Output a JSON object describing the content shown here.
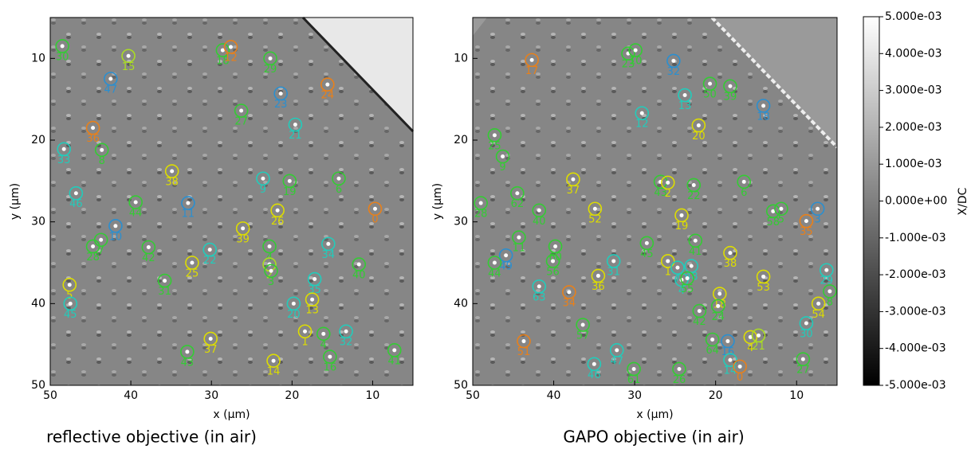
{
  "chart_data": [
    {
      "type": "scatter",
      "title": "reflective objective (in air)",
      "xlabel": "x (µm)",
      "ylabel": "y (µm)",
      "xlim": [
        50,
        5
      ],
      "ylim": [
        50,
        5
      ],
      "xticks": [
        50,
        40,
        30,
        20,
        10
      ],
      "yticks": [
        10,
        20,
        30,
        40,
        50
      ],
      "x": [
        48.5,
        40.3,
        28.6,
        27.6,
        22.7,
        42.5,
        21.4,
        15.6,
        26.3,
        19.6,
        44.7,
        48.3,
        43.6,
        34.9,
        23.6,
        20.3,
        14.2,
        46.8,
        39.4,
        32.9,
        21.8,
        9.7,
        41.9,
        26.1,
        43.7,
        44.7,
        37.8,
        30.2,
        15.5,
        22.8,
        32.4,
        11.7,
        22.8,
        22.6,
        47.6,
        35.8,
        17.2,
        47.5,
        19.8,
        17.5,
        18.4,
        16.1,
        13.3,
        33.0,
        30.1,
        15.3,
        22.3,
        7.3
      ],
      "y": [
        8.5,
        9.7,
        9.0,
        8.6,
        10.0,
        12.5,
        14.3,
        13.2,
        16.4,
        18.1,
        18.5,
        21.1,
        21.2,
        23.8,
        24.7,
        25.0,
        24.7,
        26.5,
        27.6,
        27.7,
        28.6,
        28.4,
        30.5,
        30.8,
        32.2,
        33.0,
        33.1,
        33.4,
        32.7,
        33.0,
        35.0,
        35.2,
        35.2,
        36.0,
        37.7,
        37.2,
        37.0,
        40.0,
        40.0,
        39.5,
        43.4,
        43.7,
        43.4,
        45.9,
        44.3,
        46.5,
        47.0,
        45.7
      ],
      "point_labels": [
        "30",
        "15",
        "18",
        "12",
        "29",
        "47",
        "23",
        "24",
        "27",
        "21",
        "36",
        "33",
        "8",
        "38",
        "9",
        "19",
        "6",
        "46",
        "44",
        "11",
        "26",
        "0",
        "10",
        "39",
        "7",
        "28",
        "42",
        "22",
        "34",
        "4",
        "25",
        "40",
        "2",
        "3",
        "5",
        "31",
        "35",
        "45",
        "20",
        "13",
        "1",
        "4",
        "32",
        "43",
        "37",
        "16",
        "14",
        "41"
      ],
      "point_colors": [
        "#33cc33",
        "#aadd22",
        "#33cc33",
        "#e8801a",
        "#33cc33",
        "#2a8fd0",
        "#2a8fd0",
        "#e8801a",
        "#33cc33",
        "#22ccbb",
        "#e8801a",
        "#22ccbb",
        "#33cc33",
        "#dddd00",
        "#22ccbb",
        "#33cc33",
        "#33cc33",
        "#22ccbb",
        "#33cc33",
        "#2a8fd0",
        "#dddd00",
        "#e8801a",
        "#2a8fd0",
        "#dddd00",
        "#33cc33",
        "#33cc33",
        "#33cc33",
        "#22ccbb",
        "#22ccbb",
        "#33cc33",
        "#dddd00",
        "#33cc33",
        "#aadd22",
        "#33cc33",
        "#dddd00",
        "#33cc33",
        "#22ccbb",
        "#22ccbb",
        "#22ccbb",
        "#dddd00",
        "#dddd00",
        "#33cc33",
        "#22ccbb",
        "#33cc33",
        "#dddd00",
        "#33cc33",
        "#dddd00",
        "#33cc33"
      ]
    },
    {
      "type": "scatter",
      "title": "GAPO objective (in air)",
      "xlabel": "x (µm)",
      "ylabel": "y (µm)",
      "xlim": [
        50,
        5
      ],
      "ylim": [
        50,
        5
      ],
      "xticks": [
        50,
        40,
        30,
        20,
        10
      ],
      "yticks": [
        10,
        20,
        30,
        40,
        50
      ],
      "x": [
        42.7,
        30.8,
        29.9,
        25.2,
        20.7,
        18.2,
        23.8,
        14.1,
        29.1,
        22.1,
        47.3,
        46.3,
        37.6,
        26.8,
        25.9,
        22.7,
        16.5,
        44.5,
        49.0,
        41.8,
        34.9,
        24.2,
        12.9,
        11.9,
        7.4,
        8.8,
        44.3,
        22.5,
        39.8,
        28.5,
        45.9,
        47.3,
        40.1,
        18.2,
        32.6,
        25.9,
        24.7,
        23.0,
        34.5,
        24.2,
        23.5,
        14.1,
        6.3,
        41.8,
        19.5,
        38.1,
        5.9,
        7.3,
        19.7,
        22.0,
        8.8,
        36.4,
        43.7,
        20.4,
        18.5,
        15.7,
        14.7,
        32.2,
        18.2,
        17.0,
        35.0,
        30.1,
        24.5,
        9.2
      ],
      "y": [
        10.2,
        9.4,
        9.0,
        10.3,
        13.1,
        13.4,
        14.5,
        15.8,
        16.7,
        18.2,
        19.4,
        22.0,
        24.8,
        25.1,
        25.2,
        25.5,
        25.1,
        26.5,
        27.7,
        28.6,
        28.4,
        29.2,
        28.7,
        28.4,
        28.4,
        29.9,
        31.9,
        32.3,
        33.0,
        32.6,
        34.1,
        35.0,
        34.8,
        33.8,
        34.8,
        34.8,
        35.6,
        35.4,
        36.6,
        37.1,
        36.9,
        36.7,
        35.9,
        37.9,
        38.8,
        38.6,
        38.5,
        40.0,
        40.3,
        40.9,
        42.4,
        42.6,
        44.6,
        44.4,
        44.6,
        44.1,
        43.9,
        45.7,
        46.9,
        47.7,
        47.4,
        48.0,
        48.0,
        46.8
      ],
      "point_labels": [
        "17",
        "23",
        "10",
        "32",
        "50",
        "39",
        "13",
        "18",
        "12",
        "20",
        "25",
        "9",
        "37",
        "43",
        "2",
        "22",
        "6",
        "62",
        "28",
        "40",
        "52",
        "19",
        "58",
        "5",
        "3",
        "35",
        "11",
        "41",
        "60",
        "45",
        "49",
        "44",
        "56",
        "38",
        "31",
        "1",
        "7",
        "48",
        "36",
        "4",
        "55",
        "53",
        "29",
        "63",
        "18",
        "34",
        "8",
        "54",
        "24",
        "42",
        "30",
        "57",
        "51",
        "64",
        "16",
        "4",
        "21",
        "47",
        "14",
        "0",
        "46",
        "61",
        "26",
        "27"
      ],
      "point_colors": [
        "#e8801a",
        "#33cc33",
        "#33cc33",
        "#2a8fd0",
        "#33cc33",
        "#33cc33",
        "#22ccbb",
        "#2a8fd0",
        "#22ccbb",
        "#dddd00",
        "#33cc33",
        "#33cc33",
        "#dddd00",
        "#33cc33",
        "#dddd00",
        "#33cc33",
        "#33cc33",
        "#33cc33",
        "#33cc33",
        "#33cc33",
        "#dddd00",
        "#dddd00",
        "#33cc33",
        "#33cc33",
        "#2a8fd0",
        "#e8801a",
        "#33cc33",
        "#33cc33",
        "#33cc33",
        "#33cc33",
        "#2a8fd0",
        "#33cc33",
        "#33cc33",
        "#dddd00",
        "#22ccbb",
        "#dddd00",
        "#22ccbb",
        "#22ccbb",
        "#dddd00",
        "#22ccbb",
        "#33cc33",
        "#dddd00",
        "#22ccbb",
        "#22ccbb",
        "#dddd00",
        "#e8801a",
        "#33cc33",
        "#dddd00",
        "#33cc33",
        "#33cc33",
        "#22ccbb",
        "#33cc33",
        "#e8801a",
        "#33cc33",
        "#2a8fd0",
        "#dddd00",
        "#aadd22",
        "#22ccbb",
        "#22ccbb",
        "#e8801a",
        "#22ccbb",
        "#33cc33",
        "#33cc33",
        "#33cc33"
      ],
      "colorbar": {
        "label": "X/DC",
        "lim": [
          -0.005,
          0.005
        ],
        "ticks": [
          {
            "value": 0.005,
            "label": "5.000e-03"
          },
          {
            "value": 0.004,
            "label": "4.000e-03"
          },
          {
            "value": 0.003,
            "label": "3.000e-03"
          },
          {
            "value": 0.002,
            "label": "2.000e-03"
          },
          {
            "value": 0.001,
            "label": "1.000e-03"
          },
          {
            "value": 0,
            "label": "0.000e+00"
          },
          {
            "value": -0.001,
            "label": "-1.000e-03"
          },
          {
            "value": -0.002,
            "label": "-2.000e-03"
          },
          {
            "value": -0.003,
            "label": "-3.000e-03"
          },
          {
            "value": -0.004,
            "label": "-4.000e-03"
          },
          {
            "value": -0.005,
            "label": "-5.000e-03"
          }
        ]
      }
    }
  ]
}
